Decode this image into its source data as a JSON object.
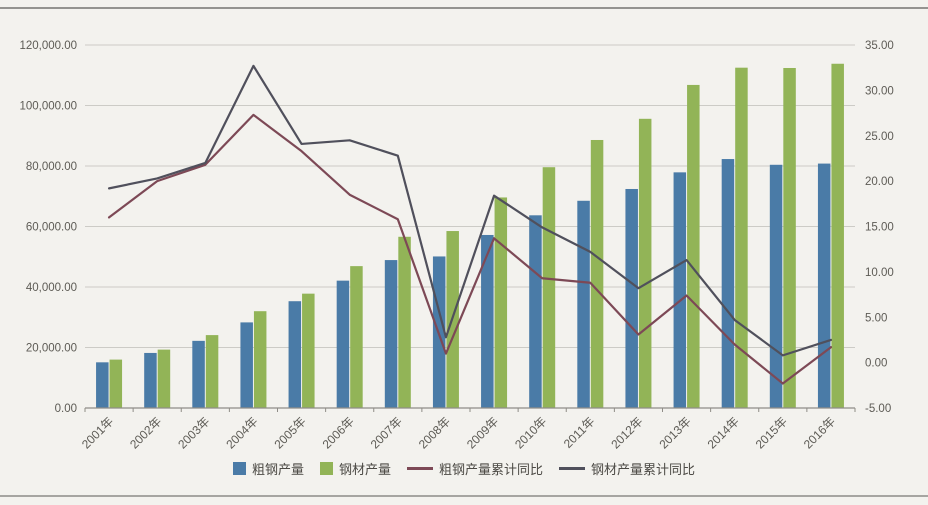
{
  "chart_data": {
    "type": "bar+line",
    "title": "",
    "categories": [
      "2001年",
      "2002年",
      "2003年",
      "2004年",
      "2005年",
      "2006年",
      "2007年",
      "2008年",
      "2009年",
      "2010年",
      "2011年",
      "2012年",
      "2013年",
      "2014年",
      "2015年",
      "2016年"
    ],
    "series": [
      {
        "name": "粗钢产量",
        "key": "crude-steel-output",
        "type": "bar",
        "axis": "left",
        "color": "#4a7ba7",
        "values": [
          15100,
          18200,
          22200,
          28300,
          35300,
          42100,
          48900,
          50100,
          57200,
          63700,
          68500,
          72400,
          77900,
          82300,
          80400,
          80800
        ]
      },
      {
        "name": "钢材产量",
        "key": "steel-products-output",
        "type": "bar",
        "axis": "left",
        "color": "#92b457",
        "values": [
          16000,
          19300,
          24100,
          32000,
          37800,
          46900,
          56600,
          58500,
          69600,
          79600,
          88600,
          95600,
          106800,
          112500,
          112400,
          113800
        ]
      },
      {
        "name": "粗钢产量累计同比",
        "key": "crude-steel-yoy",
        "type": "line",
        "axis": "right",
        "color": "#7d4956",
        "values": [
          16.0,
          20.0,
          21.8,
          27.3,
          23.3,
          18.5,
          15.8,
          1.0,
          13.7,
          9.3,
          8.8,
          3.1,
          7.4,
          2.0,
          -2.3,
          1.7
        ]
      },
      {
        "name": "钢材产量累计同比",
        "key": "steel-products-yoy",
        "type": "line",
        "axis": "right",
        "color": "#50505c",
        "values": [
          19.2,
          20.3,
          22.0,
          32.7,
          24.1,
          24.5,
          22.8,
          2.8,
          18.4,
          14.9,
          12.2,
          8.2,
          11.3,
          4.7,
          0.8,
          2.5
        ]
      }
    ],
    "left_axis": {
      "min": 0,
      "max": 120000,
      "ticks": [
        "0.00",
        "20,000.00",
        "40,000.00",
        "60,000.00",
        "80,000.00",
        "100,000.00",
        "120,000.00"
      ]
    },
    "right_axis": {
      "min": -5,
      "max": 35,
      "ticks": [
        "-5.00",
        "0.00",
        "5.00",
        "10.00",
        "15.00",
        "20.00",
        "25.00",
        "30.00",
        "35.00"
      ]
    },
    "grid": true,
    "legend_position": "bottom"
  }
}
